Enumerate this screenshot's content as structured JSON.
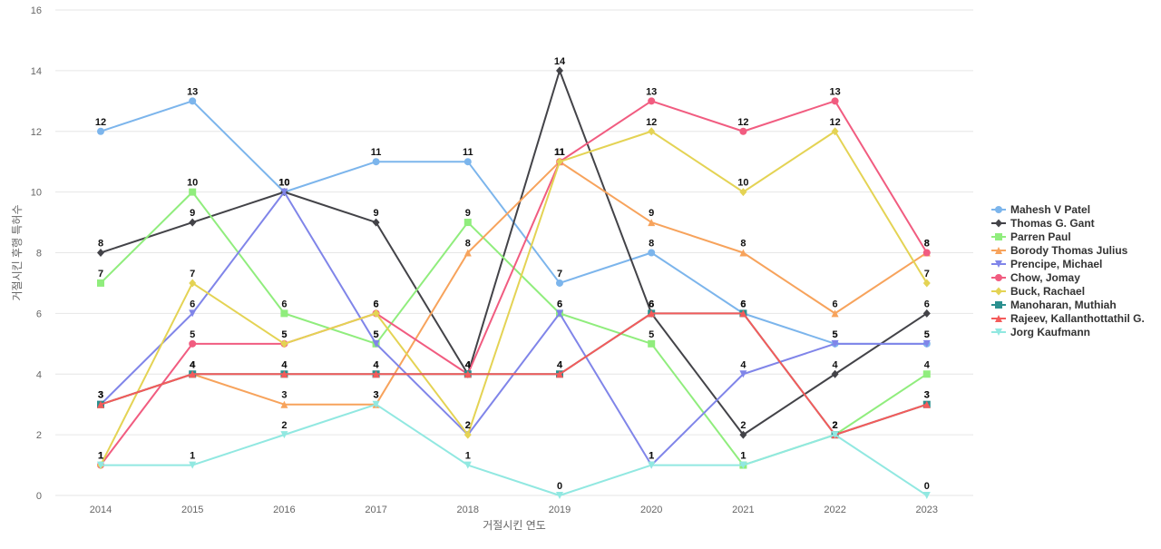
{
  "chart_data": {
    "type": "line",
    "title": "",
    "xlabel": "거절시킨 연도",
    "ylabel": "거절시킨 후행 특허수",
    "x": [
      "2014",
      "2015",
      "2016",
      "2017",
      "2018",
      "2019",
      "2020",
      "2021",
      "2022",
      "2023"
    ],
    "ylim": [
      0,
      16
    ],
    "yticks": [
      0,
      2,
      4,
      6,
      8,
      10,
      12,
      14,
      16
    ],
    "grid": true,
    "legend_position": "right",
    "data_labels": true,
    "series": [
      {
        "name": "Mahesh V Patel",
        "color": "#7cb5ec",
        "marker": "circle",
        "values": [
          12,
          13,
          10,
          11,
          11,
          7,
          8,
          6,
          5,
          5
        ]
      },
      {
        "name": "Thomas G. Gant",
        "color": "#434348",
        "marker": "diamond",
        "values": [
          8,
          9,
          10,
          9,
          4,
          14,
          6,
          2,
          4,
          6
        ]
      },
      {
        "name": "Parren Paul",
        "color": "#90ed7d",
        "marker": "square",
        "values": [
          7,
          10,
          6,
          5,
          9,
          6,
          5,
          1,
          2,
          4
        ]
      },
      {
        "name": "Borody Thomas Julius",
        "color": "#f7a35c",
        "marker": "triangle",
        "values": [
          3,
          4,
          3,
          3,
          8,
          11,
          9,
          8,
          6,
          8
        ]
      },
      {
        "name": "Prencipe, Michael",
        "color": "#8085e9",
        "marker": "triangle-down",
        "values": [
          3,
          6,
          10,
          5,
          2,
          6,
          1,
          4,
          5,
          5
        ]
      },
      {
        "name": "Chow, Jomay",
        "color": "#f15c80",
        "marker": "circle",
        "values": [
          1,
          5,
          5,
          6,
          4,
          11,
          13,
          12,
          13,
          8
        ]
      },
      {
        "name": "Buck, Rachael",
        "color": "#e4d354",
        "marker": "diamond",
        "values": [
          1,
          7,
          5,
          6,
          2,
          11,
          12,
          10,
          12,
          7
        ]
      },
      {
        "name": "Manoharan, Muthiah",
        "color": "#2b908f",
        "marker": "square",
        "values": [
          3,
          4,
          4,
          4,
          4,
          4,
          6,
          6,
          2,
          3
        ]
      },
      {
        "name": "Rajeev, Kallanthottathil G.",
        "color": "#f45b5b",
        "marker": "triangle",
        "values": [
          3,
          4,
          4,
          4,
          4,
          4,
          6,
          6,
          2,
          3
        ]
      },
      {
        "name": "Jorg Kaufmann",
        "color": "#91e8e1",
        "marker": "triangle-down",
        "values": [
          1,
          1,
          2,
          3,
          1,
          0,
          1,
          1,
          2,
          0
        ]
      }
    ]
  }
}
